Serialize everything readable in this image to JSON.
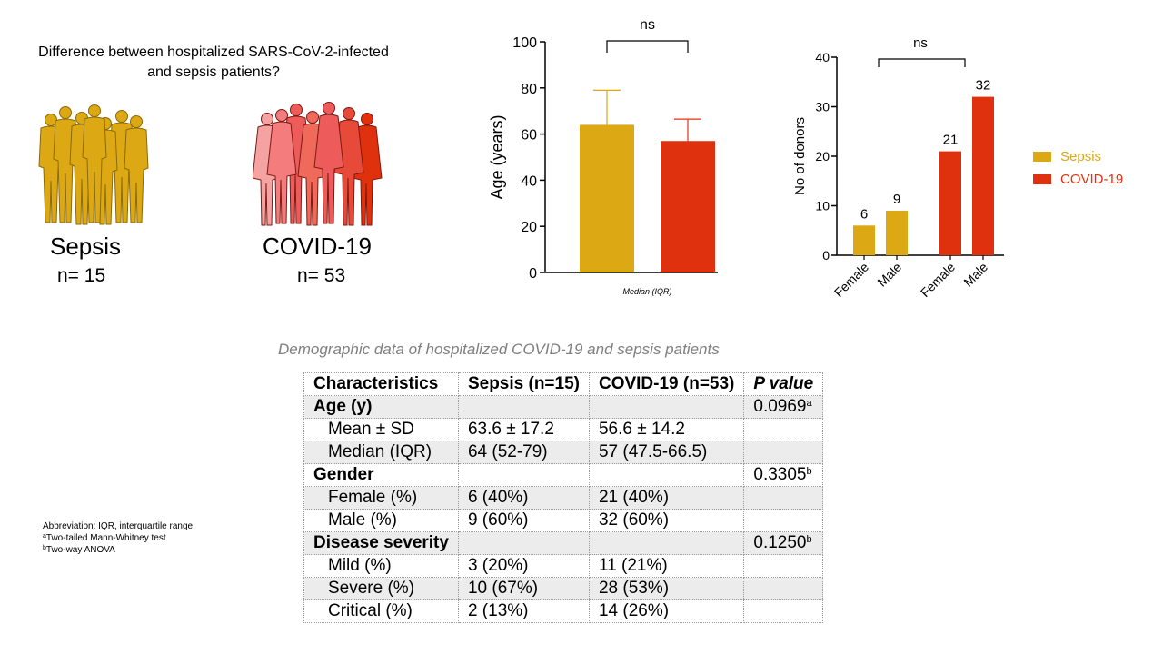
{
  "header": {
    "question": "Difference between hospitalized SARS-CoV-2-infected and sepsis patients?"
  },
  "groups": {
    "sepsis": {
      "name": "Sepsis",
      "n": "n= 15"
    },
    "covid": {
      "name": "COVID-19",
      "n": "n= 53"
    }
  },
  "colors": {
    "sepsis": "#dca814",
    "covid": "#e0310e",
    "covid_light": "#f4a2a2",
    "covid_mid": "#ee5b5b",
    "table_shade": "#ececec",
    "caption_gray": "#7f7f7f"
  },
  "icons": {
    "sepsis_group": "people-group-icon",
    "covid_group": "people-group-icon"
  },
  "chart_data": [
    {
      "type": "bar",
      "categories": [
        "Sepsis",
        "COVID-19"
      ],
      "values": [
        64,
        57
      ],
      "error_upper": [
        79,
        66.5
      ],
      "ylabel": "Age (years)",
      "xlabel": "Median (IQR)",
      "ylim": [
        0,
        100
      ],
      "yticks": [
        "0",
        "20",
        "40",
        "60",
        "80",
        "100"
      ],
      "significance": "ns",
      "colors": [
        "#dca814",
        "#e0310e"
      ]
    },
    {
      "type": "bar",
      "categories": [
        "Female",
        "Male",
        "Female",
        "Male"
      ],
      "values": [
        6,
        9,
        21,
        32
      ],
      "data_labels": [
        "6",
        "9",
        "21",
        "32"
      ],
      "groups": [
        "Sepsis",
        "Sepsis",
        "COVID-19",
        "COVID-19"
      ],
      "ylabel": "No of donors",
      "ylim": [
        0,
        40
      ],
      "yticks": [
        "0",
        "10",
        "20",
        "30",
        "40"
      ],
      "significance": "ns",
      "legend": [
        "Sepsis",
        "COVID-19"
      ],
      "legend_position": "right"
    }
  ],
  "table": {
    "title": "Demographic data of hospitalized COVID-19 and sepsis patients",
    "headers": [
      "Characteristics",
      "Sepsis (n=15)",
      "COVID-19 (n=53)",
      "P value"
    ],
    "rows": [
      {
        "label": "Age (y)",
        "sepsis": "",
        "covid": "",
        "p": "0.0969",
        "sup": "a"
      },
      {
        "label": "Mean ± SD",
        "sepsis": "63.6 ± 17.2",
        "covid": "56.6 ± 14.2",
        "p": "",
        "sup": ""
      },
      {
        "label": "Median (IQR)",
        "sepsis": "64 (52-79)",
        "covid": "57 (47.5-66.5)",
        "p": "",
        "sup": ""
      },
      {
        "label": "Gender",
        "sepsis": "",
        "covid": "",
        "p": "0.3305",
        "sup": "b"
      },
      {
        "label": "Female (%)",
        "sepsis": "6 (40%)",
        "covid": "21 (40%)",
        "p": "",
        "sup": ""
      },
      {
        "label": "Male (%)",
        "sepsis": "9 (60%)",
        "covid": "32 (60%)",
        "p": "",
        "sup": ""
      },
      {
        "label": "Disease severity",
        "sepsis": "",
        "covid": "",
        "p": "0.1250",
        "sup": "b"
      },
      {
        "label": "Mild (%)",
        "sepsis": "3 (20%)",
        "covid": "11 (21%)",
        "p": "",
        "sup": ""
      },
      {
        "label": "Severe (%)",
        "sepsis": "10 (67%)",
        "covid": "28 (53%)",
        "p": "",
        "sup": ""
      },
      {
        "label": "Critical (%)",
        "sepsis": "2 (13%)",
        "covid": "14 (26%)",
        "p": "",
        "sup": ""
      }
    ]
  },
  "footnotes": {
    "abbreviation": "Abbreviation: IQR, interquartile range",
    "a_mark": "a",
    "a_text": "Two-tailed Mann-Whitney test",
    "b_mark": "b",
    "b_text": "Two-way ANOVA"
  }
}
